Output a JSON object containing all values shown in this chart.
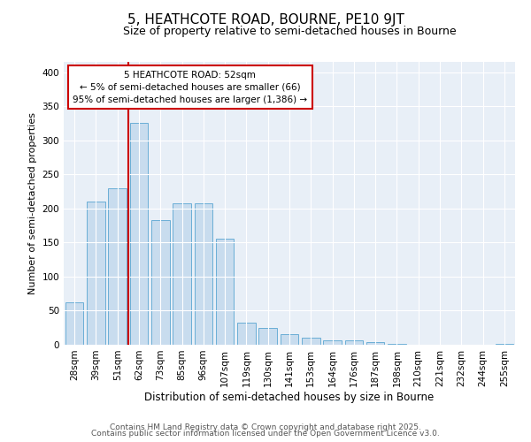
{
  "title": "5, HEATHCOTE ROAD, BOURNE, PE10 9JT",
  "subtitle": "Size of property relative to semi-detached houses in Bourne",
  "xlabel": "Distribution of semi-detached houses by size in Bourne",
  "ylabel": "Number of semi-detached properties",
  "categories": [
    "28sqm",
    "39sqm",
    "51sqm",
    "62sqm",
    "73sqm",
    "85sqm",
    "96sqm",
    "107sqm",
    "119sqm",
    "130sqm",
    "141sqm",
    "153sqm",
    "164sqm",
    "176sqm",
    "187sqm",
    "198sqm",
    "210sqm",
    "221sqm",
    "232sqm",
    "244sqm",
    "255sqm"
  ],
  "values": [
    62,
    210,
    230,
    325,
    183,
    208,
    208,
    155,
    32,
    25,
    15,
    10,
    6,
    6,
    4,
    1,
    0,
    0,
    0,
    0,
    1
  ],
  "bar_color": "#c8dcee",
  "bar_edge_color": "#6aaed6",
  "vline_x_index": 2,
  "vline_color": "#cc0000",
  "annotation_title": "5 HEATHCOTE ROAD: 52sqm",
  "annotation_line1": "← 5% of semi-detached houses are smaller (66)",
  "annotation_line2": "95% of semi-detached houses are larger (1,386) →",
  "annotation_box_color": "#cc0000",
  "ylim": [
    0,
    415
  ],
  "yticks": [
    0,
    50,
    100,
    150,
    200,
    250,
    300,
    350,
    400
  ],
  "background_color": "#e8eff7",
  "footer_line1": "Contains HM Land Registry data © Crown copyright and database right 2025.",
  "footer_line2": "Contains public sector information licensed under the Open Government Licence v3.0.",
  "title_fontsize": 11,
  "subtitle_fontsize": 9,
  "xlabel_fontsize": 8.5,
  "ylabel_fontsize": 8,
  "tick_fontsize": 7.5,
  "footer_fontsize": 6.5
}
